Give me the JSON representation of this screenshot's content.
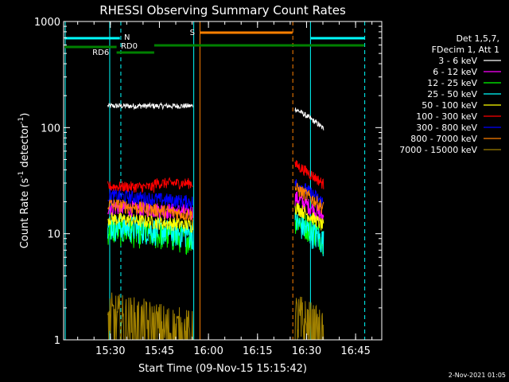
{
  "chart_data": {
    "type": "line",
    "title": "RHESSI Observing Summary Count Rates",
    "xlabel": "Start Time (09-Nov-15 15:15:42)",
    "ylabel_main": "Count Rate (s",
    "ylabel_sup1": "-1",
    "ylabel_mid": " detector",
    "ylabel_sup2": "-1",
    "ylabel_end": ")",
    "date_stamp": "2-Nov-2021 01:05",
    "x_range_minutes": [
      "15:15:42",
      "16:53"
    ],
    "y_scale": "log",
    "ylim": [
      1,
      1000
    ],
    "x_ticks": [
      {
        "label": "15:30",
        "min": 14.3
      },
      {
        "label": "15:45",
        "min": 29.3
      },
      {
        "label": "16:00",
        "min": 44.3
      },
      {
        "label": "16:15",
        "min": 59.3
      },
      {
        "label": "16:30",
        "min": 74.3
      },
      {
        "label": "16:45",
        "min": 89.3
      }
    ],
    "y_ticks": [
      {
        "label": "1",
        "v": 1
      },
      {
        "label": "10",
        "v": 10
      },
      {
        "label": "100",
        "v": 100
      },
      {
        "label": "1000",
        "v": 1000
      }
    ],
    "legend_header": [
      "Det 1,5,7,",
      "FDecim 1, Att 1"
    ],
    "series": [
      {
        "name": "3 - 6 keV",
        "color": "#ffffff",
        "seg1": 160,
        "seg1b": 160,
        "seg2": 150,
        "noise": 0.02
      },
      {
        "name": "6 - 12 keV",
        "color": "#ff00ff",
        "seg1": 18,
        "seg1b": 16,
        "seg2": 22,
        "noise": 0.06
      },
      {
        "name": "12 - 25 keV",
        "color": "#00ff00",
        "seg1": 11,
        "seg1b": 9,
        "seg2": 14,
        "noise": 0.1
      },
      {
        "name": "25 - 50 keV",
        "color": "#00ffff",
        "seg1": 12,
        "seg1b": 10,
        "seg2": 13,
        "noise": 0.1
      },
      {
        "name": "50 - 100 keV",
        "color": "#ffff00",
        "seg1": 14,
        "seg1b": 12,
        "seg2": 18,
        "noise": 0.05
      },
      {
        "name": "100 - 300 keV",
        "color": "#ff0000",
        "seg1": 28,
        "seg1b": 27,
        "seg2": 45,
        "noise": 0.04
      },
      {
        "name": "300 - 800 keV",
        "color": "#0000ff",
        "seg1": 23,
        "seg1b": 20,
        "seg2": 30,
        "noise": 0.05
      },
      {
        "name": "800 - 7000 keV",
        "color": "#ff8000",
        "seg1": 19,
        "seg1b": 15,
        "seg2": 27,
        "noise": 0.05
      },
      {
        "name": "7000 - 15000 keV",
        "color": "#a08000",
        "seg1": 1.5,
        "seg1b": 1,
        "seg2": 1.5,
        "noise": 0.3
      }
    ],
    "annotations": {
      "N": "N",
      "S": "S",
      "RD0": "RD0",
      "RD6": "RD6"
    },
    "colors": {
      "saa": "#ff8000",
      "night": "#00ffff",
      "decimation": "#008000",
      "background": "#000000",
      "axes": "#ffffff"
    }
  }
}
